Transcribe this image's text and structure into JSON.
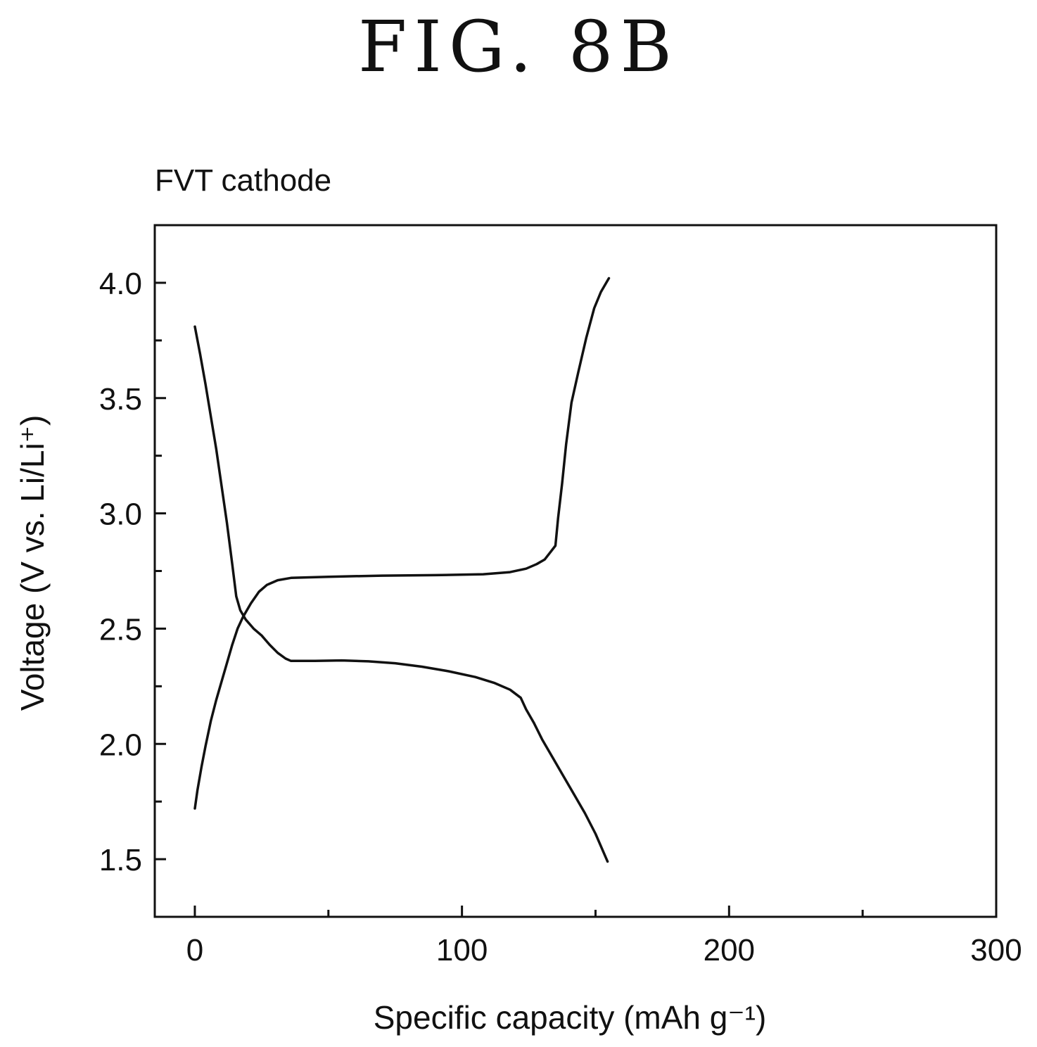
{
  "figure": {
    "title": "FIG. 8B"
  },
  "chart_data": {
    "type": "line",
    "title": "FVT cathode",
    "xlabel": "Specific capacity (mAh g⁻¹)",
    "ylabel": "Voltage (V vs. Li/Li⁺)",
    "xlim": [
      -15,
      300
    ],
    "ylim": [
      1.25,
      4.25
    ],
    "xticks": [
      0,
      100,
      200,
      300
    ],
    "xtick_labels": [
      "0",
      "100",
      "200",
      "300"
    ],
    "yticks": [
      1.5,
      2.0,
      2.5,
      3.0,
      3.5,
      4.0
    ],
    "ytick_labels": [
      "1.5",
      "2.0",
      "2.5",
      "3.0",
      "3.5",
      "4.0"
    ],
    "x_minor_step": 50,
    "y_minor_step": 0.25,
    "grid": false,
    "legend": "none",
    "line_color": "#111111",
    "series": [
      {
        "points": [
          [
            0,
            3.81
          ],
          [
            2,
            3.69
          ],
          [
            4,
            3.56
          ],
          [
            6,
            3.42
          ],
          [
            8,
            3.28
          ],
          [
            10,
            3.12
          ],
          [
            12,
            2.96
          ],
          [
            14,
            2.78
          ],
          [
            15.5,
            2.64
          ],
          [
            17,
            2.58
          ],
          [
            19,
            2.54
          ],
          [
            22,
            2.5
          ],
          [
            25,
            2.47
          ],
          [
            28,
            2.43
          ],
          [
            31,
            2.395
          ],
          [
            34,
            2.37
          ],
          [
            36,
            2.36
          ],
          [
            45,
            2.36
          ],
          [
            55,
            2.362
          ],
          [
            65,
            2.358
          ],
          [
            75,
            2.35
          ],
          [
            85,
            2.335
          ],
          [
            95,
            2.315
          ],
          [
            105,
            2.29
          ],
          [
            112,
            2.265
          ],
          [
            118,
            2.235
          ],
          [
            122,
            2.2
          ],
          [
            124,
            2.15
          ],
          [
            127,
            2.09
          ],
          [
            130,
            2.02
          ],
          [
            134,
            1.94
          ],
          [
            138,
            1.86
          ],
          [
            142,
            1.78
          ],
          [
            146,
            1.7
          ],
          [
            150,
            1.61
          ],
          [
            153,
            1.53
          ],
          [
            154.5,
            1.49
          ]
        ]
      },
      {
        "points": [
          [
            0,
            1.72
          ],
          [
            1,
            1.8
          ],
          [
            2.5,
            1.9
          ],
          [
            4,
            1.99
          ],
          [
            6,
            2.1
          ],
          [
            8,
            2.19
          ],
          [
            10,
            2.27
          ],
          [
            12,
            2.35
          ],
          [
            14,
            2.43
          ],
          [
            16,
            2.5
          ],
          [
            18,
            2.55
          ],
          [
            21,
            2.61
          ],
          [
            24,
            2.66
          ],
          [
            27,
            2.69
          ],
          [
            31,
            2.71
          ],
          [
            36,
            2.72
          ],
          [
            50,
            2.725
          ],
          [
            70,
            2.73
          ],
          [
            90,
            2.732
          ],
          [
            108,
            2.736
          ],
          [
            118,
            2.745
          ],
          [
            124,
            2.76
          ],
          [
            128,
            2.78
          ],
          [
            131,
            2.8
          ],
          [
            133,
            2.83
          ],
          [
            135,
            2.86
          ],
          [
            136,
            2.98
          ],
          [
            137.5,
            3.13
          ],
          [
            139,
            3.3
          ],
          [
            141,
            3.48
          ],
          [
            143.5,
            3.61
          ],
          [
            146.5,
            3.76
          ],
          [
            149.5,
            3.89
          ],
          [
            152,
            3.96
          ],
          [
            155,
            4.02
          ]
        ]
      }
    ]
  }
}
